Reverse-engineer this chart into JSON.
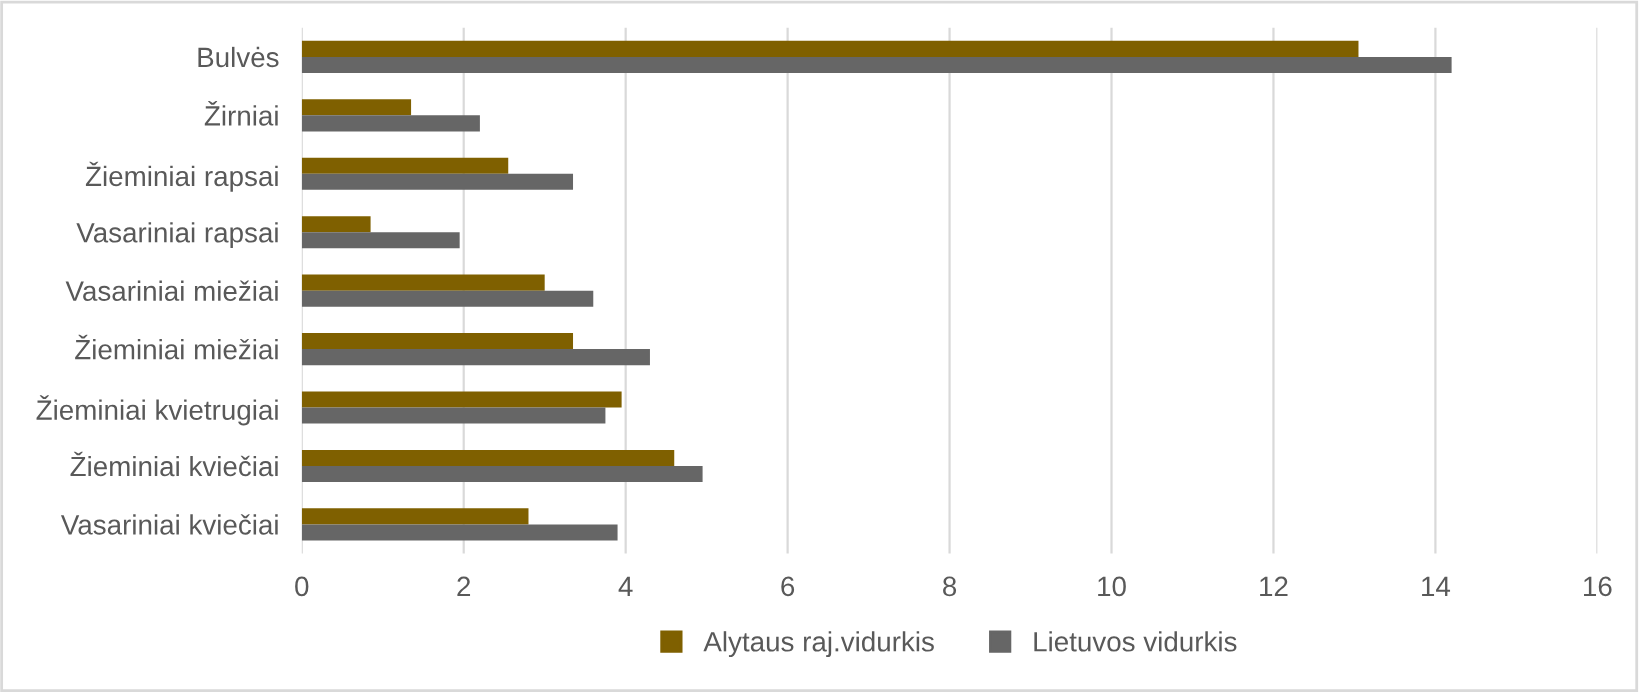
{
  "chart_data": {
    "type": "bar",
    "orientation": "horizontal",
    "categories": [
      "Bulvės",
      "Žirniai",
      "Žieminiai rapsai",
      "Vasariniai rapsai",
      "Vasariniai miežiai",
      "Žieminiai miežiai",
      "Žieminiai kvietrugiai",
      "Žieminiai kviečiai",
      "Vasariniai kviečiai"
    ],
    "series": [
      {
        "name": "Alytaus raj.vidurkis",
        "color": "#7f6000",
        "values": [
          13.05,
          1.35,
          2.55,
          0.85,
          3.0,
          3.35,
          3.95,
          4.6,
          2.8
        ]
      },
      {
        "name": "Lietuvos vidurkis",
        "color": "#666666",
        "values": [
          14.2,
          2.2,
          3.35,
          1.95,
          3.6,
          4.3,
          3.75,
          4.95,
          3.9
        ]
      }
    ],
    "xlim": [
      0,
      16
    ],
    "xticks": [
      0,
      2,
      4,
      6,
      8,
      10,
      12,
      14,
      16
    ],
    "grid": "x",
    "legend": "bottom"
  }
}
